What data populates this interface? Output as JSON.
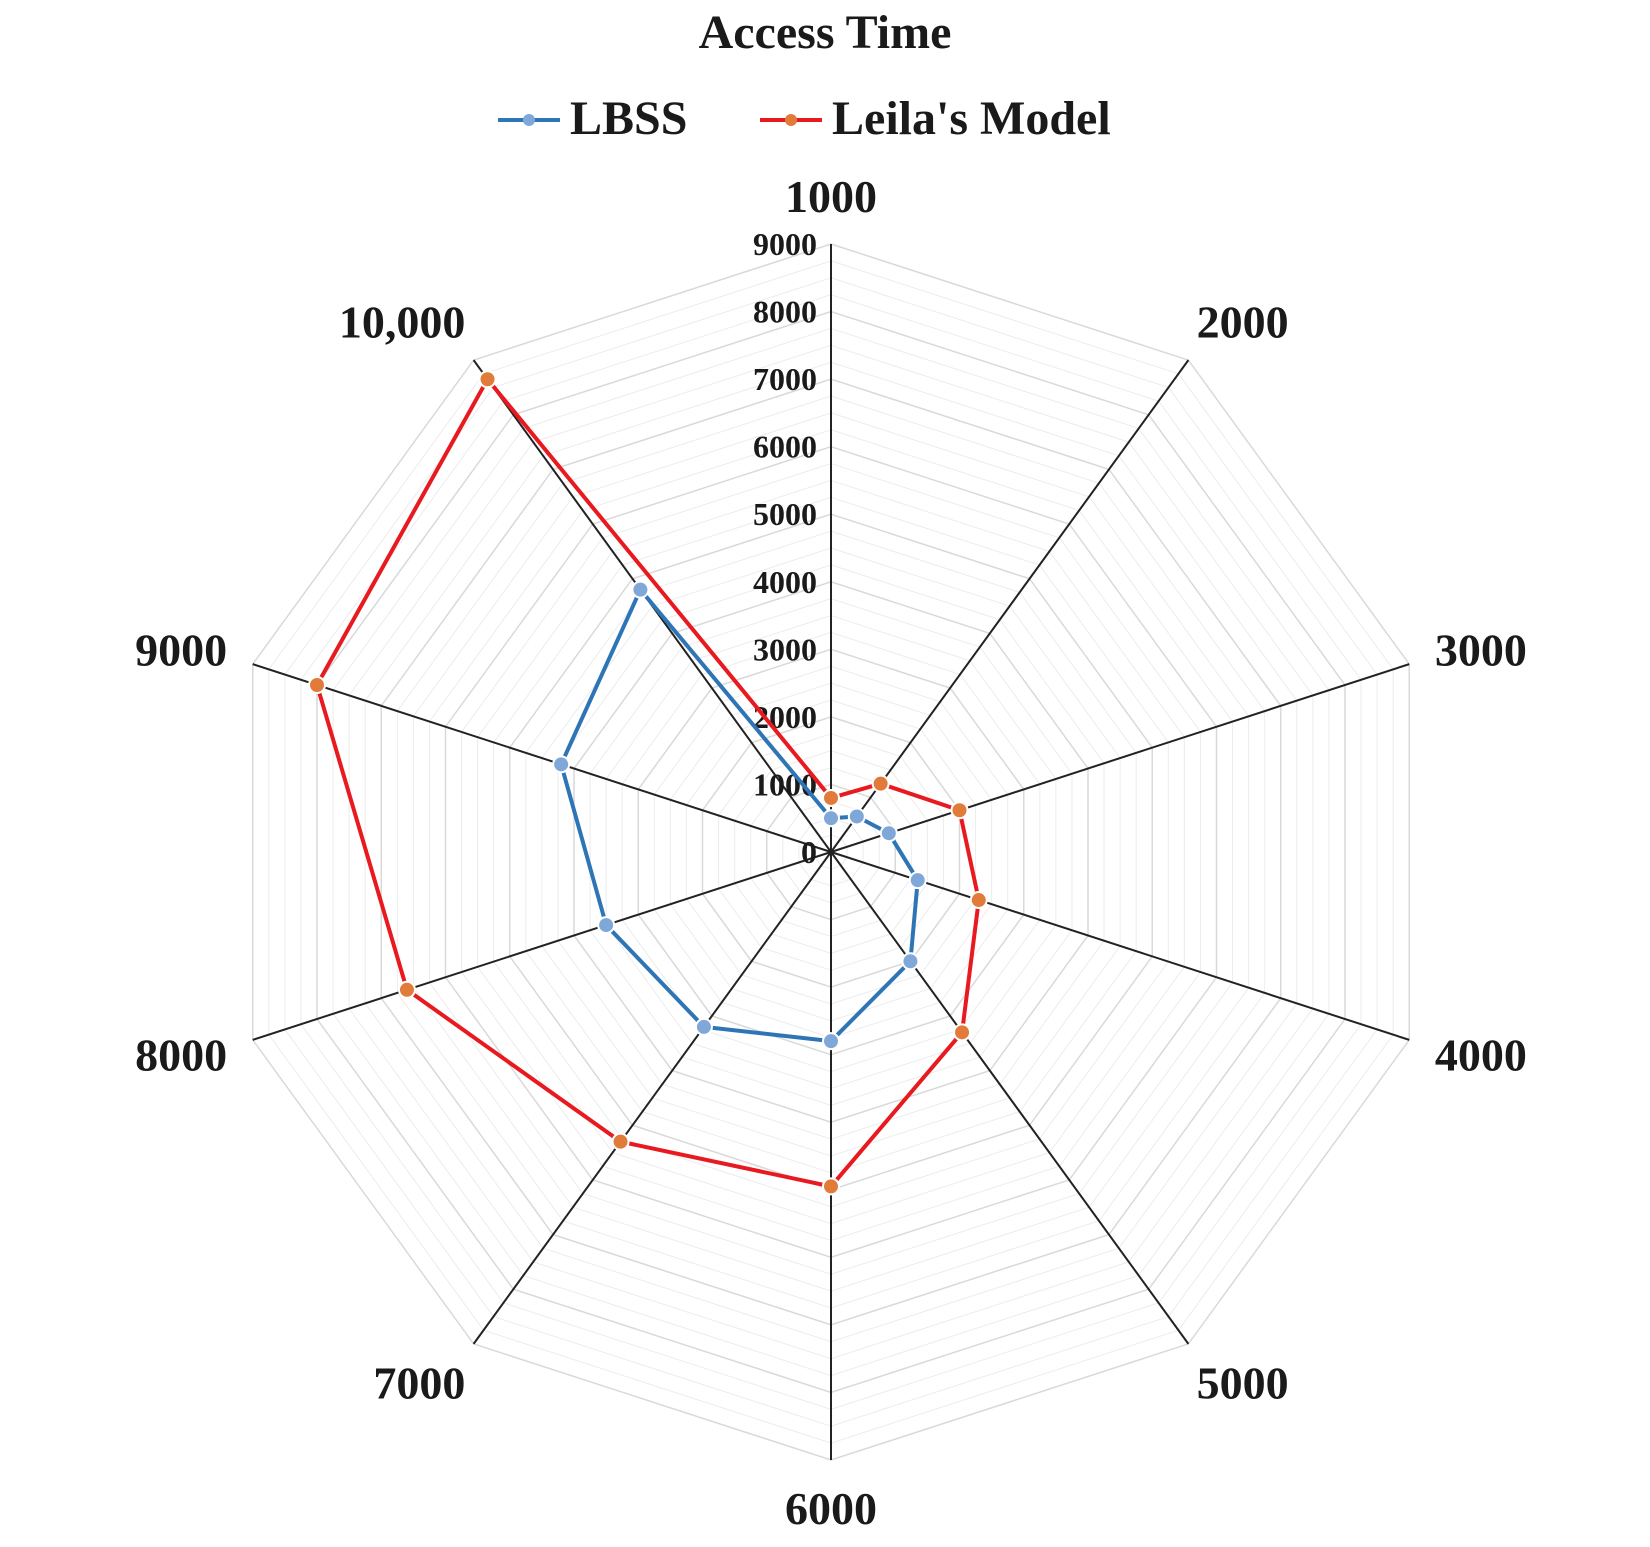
{
  "chart_data": {
    "type": "radar",
    "title": "Access Time",
    "categories": [
      "1000",
      "2000",
      "3000",
      "4000",
      "5000",
      "6000",
      "7000",
      "8000",
      "9000",
      "10,000"
    ],
    "series": [
      {
        "name": "LBSS",
        "color": "#2E75B6",
        "marker_color": "#7FA8D9",
        "values": [
          500,
          650,
          900,
          1350,
          2000,
          2800,
          3200,
          3500,
          4200,
          4800
        ]
      },
      {
        "name": "Leila's Model",
        "color": "#E8191F",
        "marker_color": "#E07B39",
        "values": [
          800,
          1250,
          2000,
          2300,
          3300,
          4950,
          5300,
          6600,
          8000,
          8650
        ]
      }
    ],
    "r_ticks": [
      0,
      1000,
      2000,
      3000,
      4000,
      5000,
      6000,
      7000,
      8000,
      9000
    ],
    "r_range": [
      0,
      9000
    ],
    "grid": true,
    "legend_position": "top"
  }
}
